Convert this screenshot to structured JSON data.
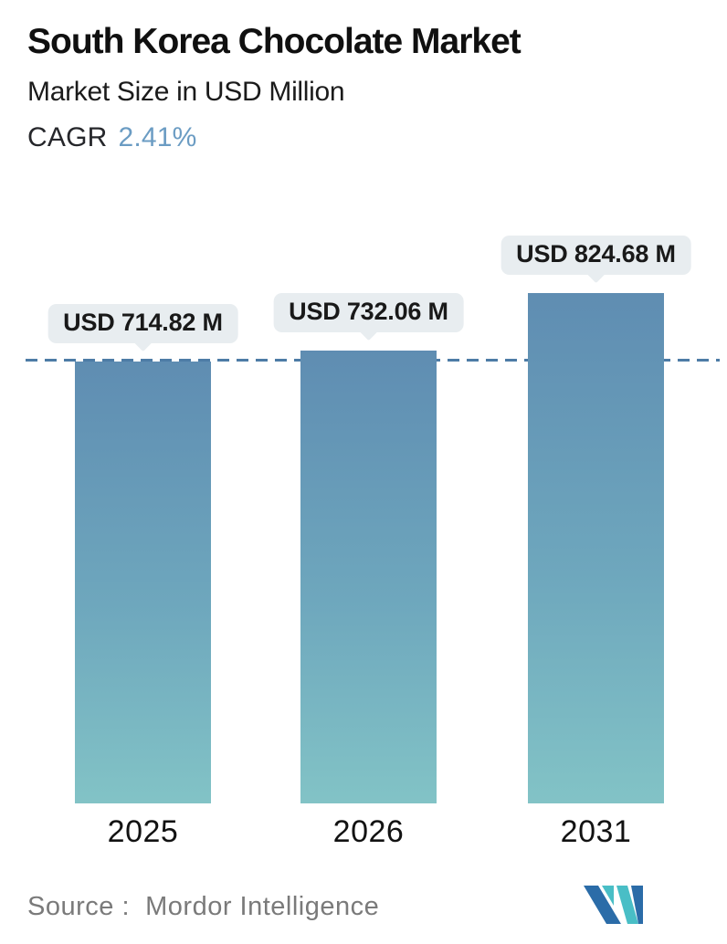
{
  "header": {
    "title": "South Korea Chocolate Market",
    "subtitle": "Market Size in USD Million",
    "cagr_label": "CAGR",
    "cagr_value": "2.41%"
  },
  "chart_data": {
    "type": "bar",
    "title": "South Korea Chocolate Market",
    "subtitle": "Market Size in USD Million",
    "unit": "USD Million",
    "cagr_percent": "2.41%",
    "categories": [
      "2025",
      "2026",
      "2031"
    ],
    "values": [
      714.82,
      732.06,
      824.68
    ],
    "labels": [
      "USD 714.82 M",
      "USD 732.06 M",
      "USD 824.68 M"
    ],
    "reference_line": 714.82,
    "ylim": [
      0,
      900
    ],
    "grid": false,
    "legend": false,
    "xlabel": "",
    "ylabel": ""
  },
  "footer": {
    "source_label": "Source :",
    "source_value": "Mordor Intelligence",
    "logo_name": "mordor-intelligence-logo"
  },
  "colors": {
    "bar_gradient_top": "#5f8db2",
    "bar_gradient_bottom": "#82c3c6",
    "dashed_line": "#4d7ca6",
    "callout_bg": "#e8edf0",
    "callout_text": "#191919",
    "cagr_value": "#6b9cc3",
    "title_text": "#101010",
    "source_text": "#7a7a7a",
    "logo_blue": "#2b6ca8",
    "logo_teal": "#49bec6"
  }
}
